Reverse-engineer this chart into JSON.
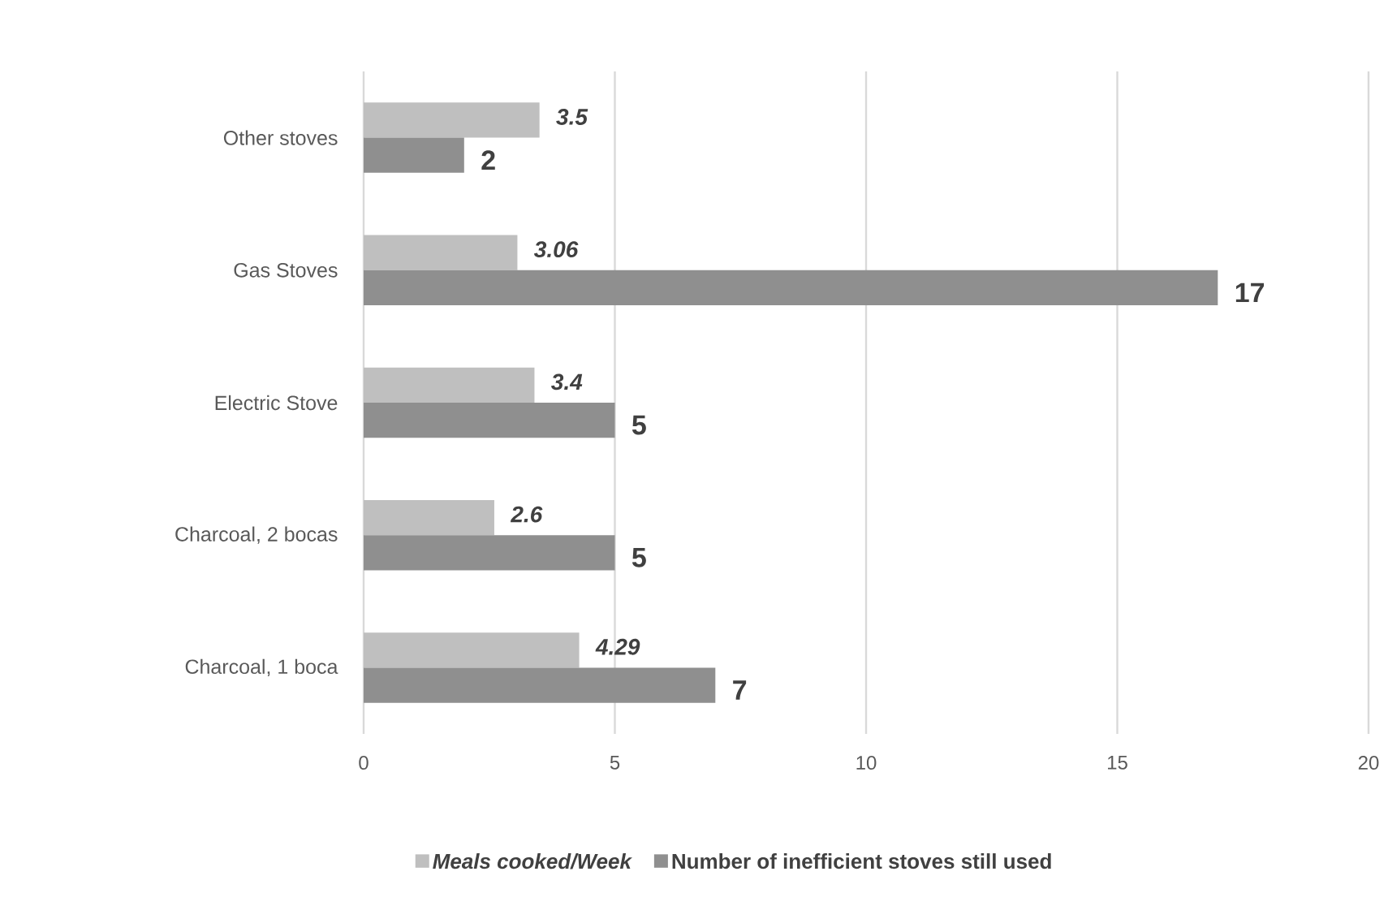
{
  "chart_data": {
    "type": "bar",
    "orientation": "horizontal",
    "categories": [
      "Other stoves",
      "Gas Stoves",
      "Electric Stove",
      "Charcoal, 2 bocas",
      "Charcoal, 1 boca"
    ],
    "series": [
      {
        "name": "Meals cooked/Week",
        "color": "#bfbfbf",
        "values": [
          3.5,
          3.06,
          3.4,
          2.6,
          4.29
        ],
        "value_labels": [
          "3.5",
          "3.06",
          "3.4",
          "2.6",
          "4.29"
        ]
      },
      {
        "name": "Number of inefficient stoves still used",
        "color": "#8f8f8f",
        "values": [
          2,
          17,
          5,
          5,
          7
        ],
        "value_labels": [
          "2",
          "17",
          "5",
          "5",
          "7"
        ]
      }
    ],
    "xlim": [
      0,
      20
    ],
    "xticks": [
      0,
      5,
      10,
      15,
      20
    ],
    "grid": "x",
    "legend": "bottom"
  }
}
